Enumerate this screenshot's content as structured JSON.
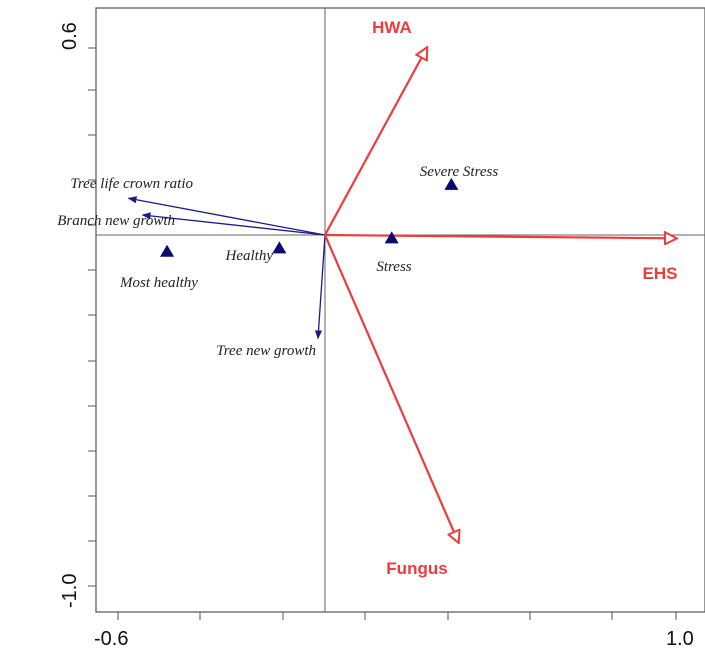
{
  "chart_data": {
    "type": "scatter",
    "subtype": "ordination-biplot",
    "title": "",
    "xlabel": "",
    "ylabel": "",
    "xlim": [
      -0.6,
      1.0
    ],
    "ylim": [
      -1.0,
      0.6
    ],
    "x_tick_labels": [
      "-0.6",
      "1.0"
    ],
    "y_tick_labels": [
      "0.6",
      "-1.0"
    ],
    "grid": false,
    "colors": {
      "environmental": "#ee3b3b",
      "species": "#1a1a8c",
      "samples": "#0a0a6e",
      "axes": "#555555"
    },
    "environmental_vectors": [
      {
        "name": "HWA",
        "x": 0.29,
        "y": 0.56
      },
      {
        "name": "EHS",
        "x": 1.0,
        "y": -0.01
      },
      {
        "name": "Fungus",
        "x": 0.38,
        "y": -0.92
      }
    ],
    "species_vectors": [
      {
        "name": "Tree life crown ratio",
        "x": -0.56,
        "y": 0.11
      },
      {
        "name": "Branch new growth",
        "x": -0.52,
        "y": 0.06
      },
      {
        "name": "Tree new growth",
        "x": -0.02,
        "y": -0.31
      }
    ],
    "sample_points": [
      {
        "name": "Severe Stress",
        "x": 0.36,
        "y": 0.15
      },
      {
        "name": "Stress",
        "x": 0.19,
        "y": -0.01
      },
      {
        "name": "Healthy",
        "x": -0.13,
        "y": -0.04
      },
      {
        "name": "Most healthy",
        "x": -0.45,
        "y": -0.05
      }
    ]
  }
}
